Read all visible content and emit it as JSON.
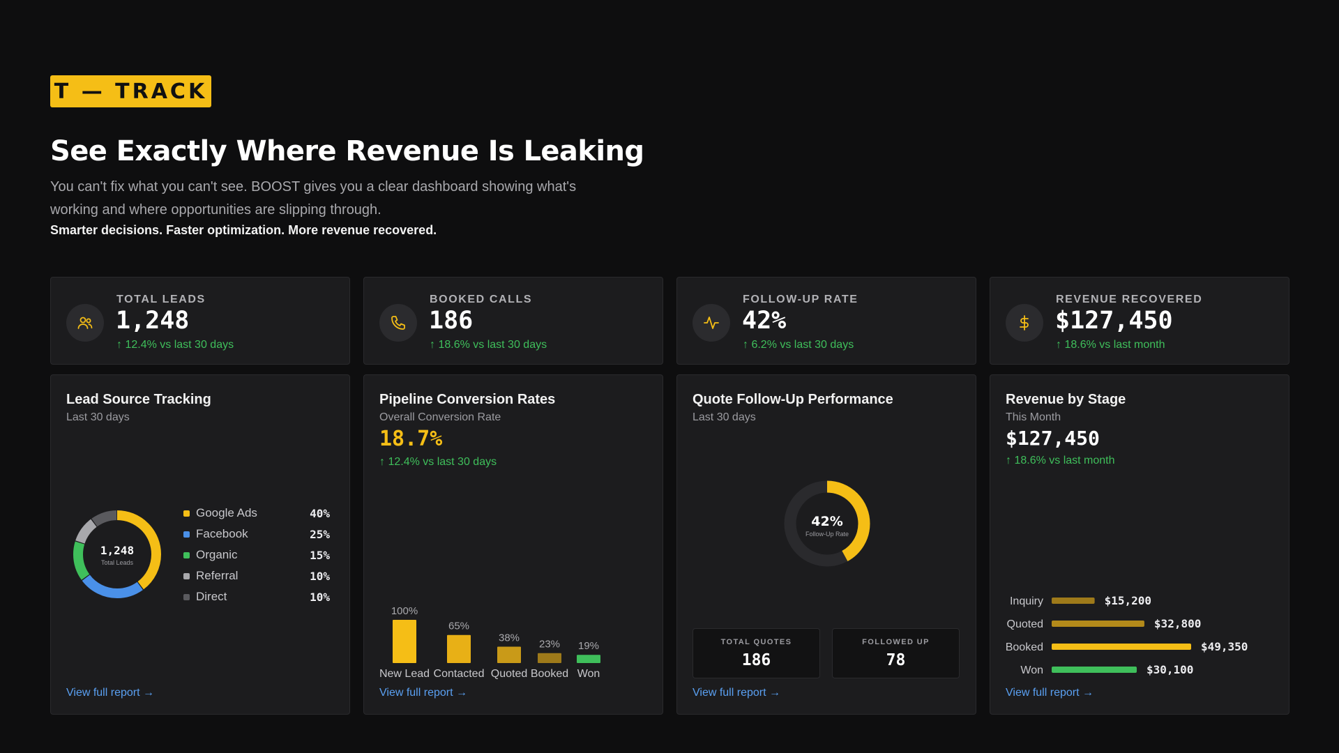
{
  "brand": {
    "logo_text": "T — TRACK"
  },
  "hero": {
    "headline": "See Exactly Where Revenue Is Leaking",
    "subtext": "You can't fix what you can't see. BOOST gives you a clear dashboard showing what's working and where opportunities are slipping through.",
    "tagline": "Smarter decisions. Faster optimization. More revenue recovered."
  },
  "kpis": [
    {
      "label": "TOTAL LEADS",
      "value": "1,248",
      "delta": "↑ 12.4% vs last 30 days",
      "icon": "users-icon"
    },
    {
      "label": "BOOKED CALLS",
      "value": "186",
      "delta": "↑ 18.6% vs last 30 days",
      "icon": "phone-icon"
    },
    {
      "label": "FOLLOW-UP RATE",
      "value": "42%",
      "delta": "↑ 6.2% vs last 30 days",
      "icon": "activity-icon"
    },
    {
      "label": "REVENUE RECOVERED",
      "value": "$127,450",
      "delta": "↑ 18.6% vs last month",
      "icon": "dollar-icon"
    }
  ],
  "lead_source": {
    "title": "Lead Source Tracking",
    "subtitle": "Last 30 days",
    "center_value": "1,248",
    "center_label": "Total Leads",
    "items": [
      {
        "label": "Google Ads",
        "pct": "40%",
        "color": "#f5be16"
      },
      {
        "label": "Facebook",
        "pct": "25%",
        "color": "#4a90e8"
      },
      {
        "label": "Organic",
        "pct": "15%",
        "color": "#3fbf5b"
      },
      {
        "label": "Referral",
        "pct": "10%",
        "color": "#a8a8ac"
      },
      {
        "label": "Direct",
        "pct": "10%",
        "color": "#5a5a5e"
      }
    ],
    "link": "View full report →"
  },
  "pipeline": {
    "title": "Pipeline Conversion Rates",
    "subtitle": "Overall Conversion Rate",
    "value": "18.7%",
    "delta": "↑ 12.4% vs last 30 days",
    "link": "View full report →"
  },
  "quote_followup": {
    "title": "Quote Follow-Up Performance",
    "subtitle": "Last 30 days",
    "gauge_value": "42%",
    "gauge_label": "Follow-Up Rate",
    "gauge_fraction": 0.42,
    "total_quotes_label": "TOTAL QUOTES",
    "total_quotes": "186",
    "followed_up_label": "FOLLOWED UP",
    "followed_up": "78",
    "link": "View full report →"
  },
  "revenue_stage": {
    "title": "Revenue by Stage",
    "subtitle": "This Month",
    "value": "$127,450",
    "delta": "↑ 18.6% vs last month",
    "link": "View full report →"
  },
  "colors": {
    "accent": "#f5be16",
    "accent_dim": "#b38a1a",
    "positive": "#3fbf5b",
    "link": "#5aa0f2"
  },
  "chart_data": [
    {
      "type": "pie",
      "categories": [
        "Google Ads",
        "Facebook",
        "Organic",
        "Referral",
        "Direct"
      ],
      "values": [
        40,
        25,
        15,
        10,
        10
      ]
    },
    {
      "type": "bar",
      "categories": [
        "New Lead",
        "Contacted",
        "Quoted",
        "Booked",
        "Won"
      ],
      "values": [
        100,
        65,
        38,
        23,
        19
      ],
      "value_labels": [
        "100%",
        "65%",
        "38%",
        "23%",
        "19%"
      ],
      "colors": [
        "#f5be16",
        "#e8b016",
        "#c99a18",
        "#9e7a1a",
        "#3fbf5b"
      ]
    },
    {
      "type": "bar",
      "orientation": "horizontal",
      "categories": [
        "Inquiry",
        "Quoted",
        "Booked",
        "Won"
      ],
      "values": [
        15200,
        32800,
        49350,
        30100
      ],
      "value_labels": [
        "$15,200",
        "$32,800",
        "$49,350",
        "$30,100"
      ],
      "colors": [
        "#9e7a1a",
        "#b38a1a",
        "#f5be16",
        "#3fbf5b"
      ]
    }
  ]
}
